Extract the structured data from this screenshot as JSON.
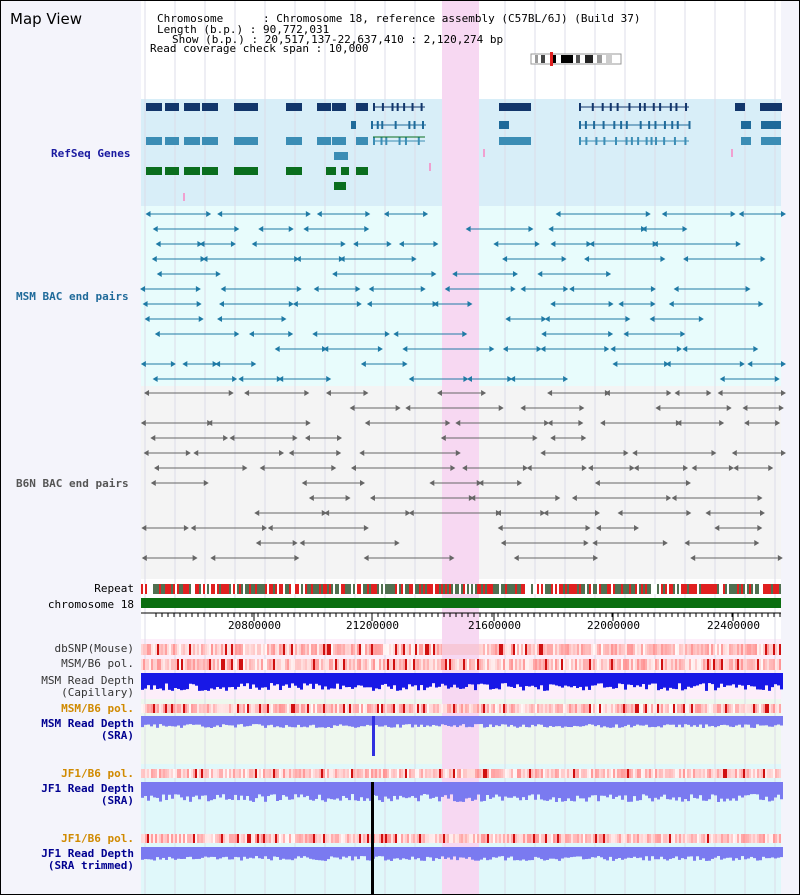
{
  "header": {
    "title": "Map View",
    "info_lines": [
      "Chromosome      : Chromosome 18, reference assembly (C57BL/6J) (Build 37)",
      "Length (b.p.) : 90,772,031",
      "Show (b.p.) : 20,517,137-22,637,410 : 2,120,274 bp",
      "Read coverage check span : 10,000"
    ]
  },
  "tracks": {
    "refseq": "RefSeq Genes",
    "msm_bac": "MSM BAC end pairs",
    "b6n_bac": "B6N BAC end pairs",
    "repeat": "Repeat",
    "chromosome": "chromosome 18"
  },
  "axis": {
    "ticks": [
      "20800000",
      "21200000",
      "21600000",
      "22000000",
      "22400000"
    ],
    "range": [
      20517137,
      22637410
    ]
  },
  "lower_tracks": {
    "dbsnp": "dbSNP(Mouse)",
    "msm_pol_cap": "MSM/B6 pol.",
    "msm_depth_cap_1": "MSM Read Depth",
    "msm_depth_cap_2": "(Capillary)",
    "msm_pol_sra": "MSM/B6 pol.",
    "msm_depth_sra_1": "MSM Read Depth",
    "msm_depth_sra_2": "(SRA)",
    "jf1_pol_sra": "JF1/B6 pol.",
    "jf1_depth_sra_1": "JF1 Read Depth",
    "jf1_depth_sra_2": "(SRA)",
    "jf1_pol_trim": "JF1/B6 pol.",
    "jf1_depth_trim_1": "JF1 Read Depth",
    "jf1_depth_trim_2": "(SRA trimmed)"
  },
  "colors": {
    "refseq_dark": "#12366b",
    "refseq_mid": "#3b8db5",
    "refseq_green": "#0a6e1e",
    "msm_line": "#1f7aa5",
    "b6n_line": "#666666",
    "highlight": "#f7d8f2",
    "chrom_bar": "#0a6e10",
    "depth_blue": "#1818e6",
    "depth_light": "#7a7af0",
    "pol_red": "#e83030",
    "label_orange": "#d08a00",
    "label_blue": "#000090"
  }
}
